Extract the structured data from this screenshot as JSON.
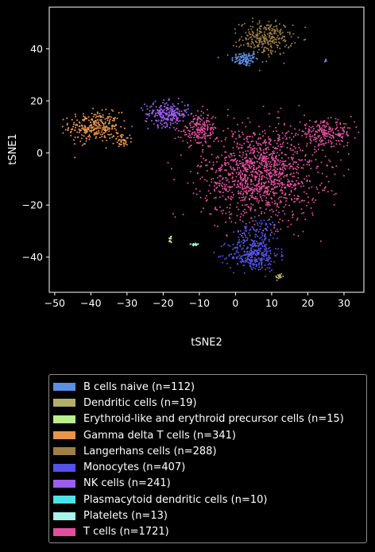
{
  "chart_data": {
    "type": "scatter",
    "title": "",
    "xlabel": "tSNE2",
    "ylabel": "tSNE1",
    "xlim": [
      -51.5,
      35.5
    ],
    "ylim": [
      -53.5,
      56
    ],
    "xticks": [
      -50,
      -40,
      -30,
      -20,
      -10,
      0,
      10,
      20,
      30
    ],
    "yticks": [
      -40,
      -20,
      0,
      20,
      40
    ],
    "grid": false,
    "legend_position": "below",
    "background": "#000000",
    "series": [
      {
        "name": "B cells naive (n=112)",
        "color": "#5b8fe6",
        "n": 112,
        "clusters": [
          {
            "cx": 2.5,
            "cy": 36,
            "sx": 1.8,
            "sy": 1.4,
            "n": 108
          },
          {
            "cx": 25,
            "cy": 35.5,
            "sx": 0.2,
            "sy": 0.3,
            "n": 4
          }
        ]
      },
      {
        "name": "Dendritic cells (n=19)",
        "color": "#b5ad6a",
        "n": 19,
        "clusters": [
          {
            "cx": 12,
            "cy": -47.5,
            "sx": 0.5,
            "sy": 0.8,
            "n": 19
          }
        ]
      },
      {
        "name": "Erythroid-like and erythroid precursor cells (n=15)",
        "color": "#b8ee8e",
        "n": 15,
        "clusters": [
          {
            "cx": -18,
            "cy": -33,
            "sx": 0.3,
            "sy": 0.8,
            "n": 15
          }
        ]
      },
      {
        "name": "Gamma delta T cells (n=341)",
        "color": "#e8954a",
        "n": 341,
        "clusters": [
          {
            "cx": -39,
            "cy": 10,
            "sx": 3.5,
            "sy": 2.8,
            "n": 300
          },
          {
            "cx": -31,
            "cy": 4.5,
            "sx": 1.2,
            "sy": 1.2,
            "n": 41
          }
        ]
      },
      {
        "name": "Langerhans cells (n=288)",
        "color": "#9e7f45",
        "n": 288,
        "clusters": [
          {
            "cx": 8.5,
            "cy": 44,
            "sx": 3.6,
            "sy": 3.2,
            "n": 288
          }
        ]
      },
      {
        "name": "Monocytes (n=407)",
        "color": "#5352e8",
        "n": 407,
        "clusters": [
          {
            "cx": 5,
            "cy": -39,
            "sx": 3.5,
            "sy": 3.2,
            "n": 320
          },
          {
            "cx": 7,
            "cy": -30,
            "sx": 2.8,
            "sy": 2.5,
            "n": 87
          }
        ]
      },
      {
        "name": "NK cells (n=241)",
        "color": "#9b5ef0",
        "n": 241,
        "clusters": [
          {
            "cx": -19,
            "cy": 15,
            "sx": 3,
            "sy": 2.3,
            "n": 241
          }
        ]
      },
      {
        "name": "Plasmacytoid dendritic cells (n=10)",
        "color": "#4ce3e8",
        "n": 10,
        "clusters": [
          {
            "cx": -11.5,
            "cy": -35,
            "sx": 0.6,
            "sy": 0.2,
            "n": 10
          }
        ]
      },
      {
        "name": "Platelets (n=13)",
        "color": "#a8f0e8",
        "n": 13,
        "clusters": [
          {
            "cx": -11,
            "cy": -35.2,
            "sx": 0.5,
            "sy": 0.2,
            "n": 13
          }
        ]
      },
      {
        "name": "T cells (n=1721)",
        "color": "#e34e9e",
        "n": 1721,
        "clusters": [
          {
            "cx": 7,
            "cy": -8,
            "sx": 8,
            "sy": 9,
            "n": 1300
          },
          {
            "cx": 25,
            "cy": 7.5,
            "sx": 3.8,
            "sy": 2.3,
            "n": 230
          },
          {
            "cx": -10,
            "cy": 9,
            "sx": 2.5,
            "sy": 3,
            "n": 191
          }
        ]
      }
    ]
  }
}
